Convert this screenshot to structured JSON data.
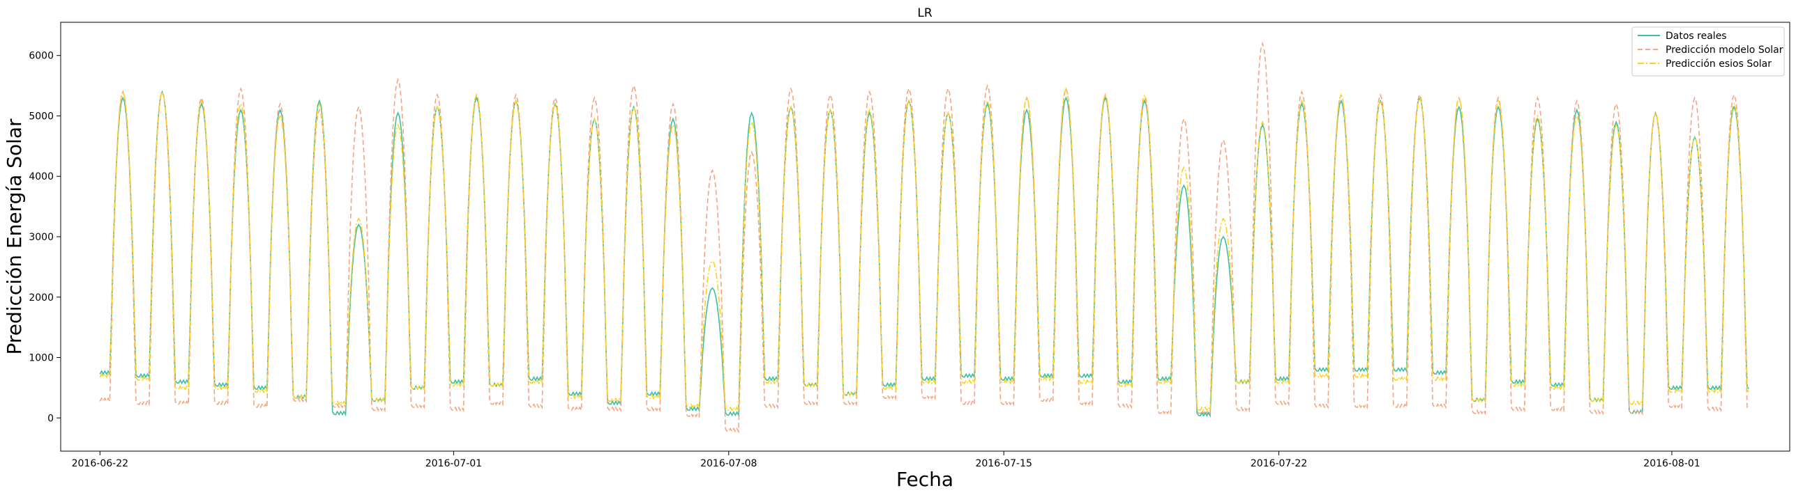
{
  "chart_data": {
    "type": "line",
    "title": "LR",
    "xlabel": "Fecha",
    "ylabel": "Predicción Energía Solar",
    "xlim": [
      "2016-06-21T00:00",
      "2016-08-04T00:00"
    ],
    "ylim": [
      -550,
      6550
    ],
    "x_ticks": [
      {
        "date": "2016-06-22",
        "label": "2016-06-22"
      },
      {
        "date": "2016-07-01",
        "label": "2016-07-01"
      },
      {
        "date": "2016-07-08",
        "label": "2016-07-08"
      },
      {
        "date": "2016-07-15",
        "label": "2016-07-15"
      },
      {
        "date": "2016-07-22",
        "label": "2016-07-22"
      },
      {
        "date": "2016-08-01",
        "label": "2016-08-01"
      }
    ],
    "y_ticks": [
      0,
      1000,
      2000,
      3000,
      4000,
      5000,
      6000
    ],
    "grid": false,
    "legend_position": "top-right",
    "start_date": "2016-06-22",
    "day_labels": [
      "06-22",
      "06-23",
      "06-24",
      "06-25",
      "06-26",
      "06-27",
      "06-28",
      "06-29",
      "06-30",
      "07-01",
      "07-02",
      "07-03",
      "07-04",
      "07-05",
      "07-06",
      "07-07",
      "07-08",
      "07-09",
      "07-10",
      "07-11",
      "07-12",
      "07-13",
      "07-14",
      "07-15",
      "07-16",
      "07-17",
      "07-18",
      "07-19",
      "07-20",
      "07-21",
      "07-22",
      "07-23",
      "07-24",
      "07-25",
      "07-26",
      "07-27",
      "07-28",
      "07-29",
      "07-30",
      "07-31",
      "08-01",
      "08-02"
    ],
    "series": [
      {
        "name": "Datos reales",
        "color": "#3cbfa4",
        "style": "solid",
        "daily_peak": [
          5300,
          5400,
          5200,
          5100,
          5100,
          5250,
          3200,
          5050,
          5150,
          5300,
          5250,
          5200,
          4950,
          5150,
          4950,
          2150,
          5050,
          5150,
          5100,
          5050,
          5250,
          5050,
          5200,
          5100,
          5300,
          5300,
          5250,
          3850,
          3000,
          4850,
          5200,
          5250,
          5250,
          5300,
          5150,
          5150,
          4950,
          5100,
          4900,
          5050,
          4650,
          5150
        ],
        "night_level": [
          750,
          700,
          600,
          550,
          500,
          350,
          80,
          300,
          500,
          600,
          550,
          650,
          400,
          250,
          400,
          150,
          70,
          650,
          550,
          400,
          550,
          650,
          700,
          650,
          700,
          700,
          600,
          650,
          60,
          600,
          650,
          800,
          800,
          800,
          750,
          300,
          600,
          550,
          300,
          100,
          500,
          500
        ]
      },
      {
        "name": "Predicción modelo Solar",
        "color": "#f4a582",
        "style": "dashed",
        "daily_peak": [
          5400,
          5400,
          5300,
          5450,
          5200,
          5100,
          5150,
          5600,
          5350,
          5350,
          5350,
          5300,
          5300,
          5500,
          5200,
          4100,
          4400,
          5450,
          5350,
          5400,
          5450,
          5450,
          5500,
          5300,
          5450,
          5350,
          5300,
          4950,
          4600,
          6200,
          5400,
          5350,
          5350,
          5350,
          5300,
          5300,
          5300,
          5250,
          5200,
          5050,
          5300,
          5350
        ],
        "night_level": [
          300,
          250,
          250,
          250,
          200,
          300,
          200,
          150,
          200,
          150,
          250,
          200,
          150,
          150,
          150,
          50,
          -200,
          200,
          250,
          250,
          350,
          350,
          250,
          250,
          300,
          250,
          200,
          100,
          100,
          150,
          250,
          200,
          200,
          200,
          200,
          100,
          150,
          150,
          100,
          100,
          200,
          150
        ]
      },
      {
        "name": "Predicción esios Solar",
        "color": "#ffd21a",
        "style": "dashdot",
        "daily_peak": [
          5400,
          5400,
          5250,
          5200,
          5000,
          5200,
          3300,
          4850,
          5150,
          5350,
          5250,
          5200,
          4950,
          5150,
          4850,
          2600,
          4900,
          5150,
          5100,
          5100,
          5250,
          5050,
          5250,
          5300,
          5450,
          5350,
          5350,
          4150,
          3300,
          4900,
          5250,
          5350,
          5250,
          5300,
          5300,
          5250,
          5000,
          5000,
          4850,
          5050,
          4650,
          5200
        ],
        "night_level": [
          700,
          650,
          500,
          500,
          450,
          350,
          250,
          300,
          500,
          550,
          550,
          600,
          350,
          300,
          350,
          200,
          150,
          600,
          550,
          400,
          500,
          600,
          600,
          600,
          650,
          600,
          550,
          600,
          150,
          600,
          600,
          700,
          700,
          650,
          650,
          300,
          550,
          500,
          300,
          250,
          450,
          450
        ]
      }
    ]
  }
}
